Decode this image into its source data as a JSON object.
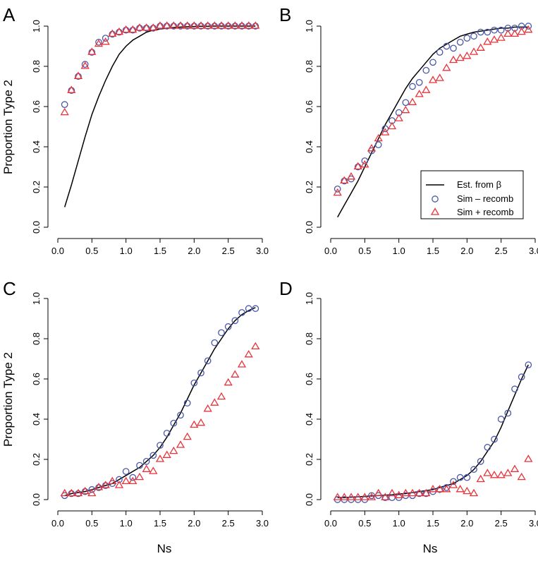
{
  "xlabel": "Ns",
  "ylabel": "Proportion Type 2",
  "colors": {
    "model": "#000000",
    "sim_no_recomb": "#4a57a8",
    "sim_recomb": "#e8333a"
  },
  "legend": {
    "placement": "bottom-right of panel B",
    "entries": [
      {
        "label": "Est. from β",
        "marker": "line",
        "color": "#000000"
      },
      {
        "label": "Sim – recomb",
        "marker": "circle",
        "color": "#4a57a8"
      },
      {
        "label": "Sim + recomb",
        "marker": "triangle",
        "color": "#e8333a"
      }
    ]
  },
  "chart_data": [
    {
      "panel": "A",
      "type": "scatter",
      "xlim": [
        0,
        3.0
      ],
      "ylim": [
        0,
        1.0
      ],
      "xticks": [
        0.0,
        0.5,
        1.0,
        1.5,
        2.0,
        2.5,
        3.0
      ],
      "yticks": [
        0.0,
        0.2,
        0.4,
        0.6,
        0.8,
        1.0
      ],
      "x": [
        0.1,
        0.2,
        0.3,
        0.4,
        0.5,
        0.6,
        0.7,
        0.8,
        0.9,
        1.0,
        1.1,
        1.2,
        1.3,
        1.4,
        1.5,
        1.6,
        1.7,
        1.8,
        1.9,
        2.0,
        2.1,
        2.2,
        2.3,
        2.4,
        2.5,
        2.6,
        2.7,
        2.8,
        2.9
      ],
      "series": [
        {
          "name": "Est. from β",
          "kind": "line",
          "values": [
            0.1,
            0.21,
            0.33,
            0.45,
            0.56,
            0.65,
            0.73,
            0.8,
            0.86,
            0.9,
            0.93,
            0.95,
            0.97,
            0.98,
            0.985,
            0.99,
            0.993,
            0.995,
            0.997,
            0.998,
            0.999,
            0.999,
            1.0,
            1.0,
            1.0,
            1.0,
            1.0,
            1.0,
            1.0
          ]
        },
        {
          "name": "Sim – recomb",
          "kind": "circle",
          "values": [
            0.61,
            0.68,
            0.75,
            0.81,
            0.87,
            0.92,
            0.94,
            0.96,
            0.97,
            0.98,
            0.98,
            0.99,
            0.99,
            0.99,
            1.0,
            1.0,
            1.0,
            1.0,
            1.0,
            1.0,
            1.0,
            1.0,
            1.0,
            1.0,
            1.0,
            1.0,
            1.0,
            1.0,
            1.0
          ]
        },
        {
          "name": "Sim + recomb",
          "kind": "triangle",
          "values": [
            0.57,
            0.68,
            0.75,
            0.8,
            0.87,
            0.91,
            0.92,
            0.96,
            0.97,
            0.98,
            0.98,
            0.99,
            0.99,
            0.99,
            1.0,
            1.0,
            1.0,
            1.0,
            1.0,
            1.0,
            1.0,
            1.0,
            1.0,
            1.0,
            1.0,
            1.0,
            1.0,
            1.0,
            1.0
          ]
        }
      ]
    },
    {
      "panel": "B",
      "type": "scatter",
      "xlim": [
        0,
        3.0
      ],
      "ylim": [
        0,
        1.0
      ],
      "xticks": [
        0.0,
        0.5,
        1.0,
        1.5,
        2.0,
        2.5,
        3.0
      ],
      "yticks": [
        0.0,
        0.2,
        0.4,
        0.6,
        0.8,
        1.0
      ],
      "x": [
        0.1,
        0.2,
        0.3,
        0.4,
        0.5,
        0.6,
        0.7,
        0.8,
        0.9,
        1.0,
        1.1,
        1.2,
        1.3,
        1.4,
        1.5,
        1.6,
        1.7,
        1.8,
        1.9,
        2.0,
        2.1,
        2.2,
        2.3,
        2.4,
        2.5,
        2.6,
        2.7,
        2.8,
        2.9
      ],
      "series": [
        {
          "name": "Est. from β",
          "kind": "line",
          "values": [
            0.05,
            0.11,
            0.17,
            0.23,
            0.3,
            0.37,
            0.44,
            0.51,
            0.57,
            0.63,
            0.69,
            0.74,
            0.78,
            0.82,
            0.86,
            0.89,
            0.91,
            0.93,
            0.95,
            0.96,
            0.97,
            0.975,
            0.98,
            0.985,
            0.99,
            0.99,
            0.995,
            0.995,
            0.995
          ]
        },
        {
          "name": "Sim – recomb",
          "kind": "circle",
          "values": [
            0.19,
            0.23,
            0.24,
            0.3,
            0.33,
            0.38,
            0.41,
            0.49,
            0.53,
            0.57,
            0.62,
            0.7,
            0.72,
            0.78,
            0.82,
            0.87,
            0.9,
            0.89,
            0.92,
            0.94,
            0.95,
            0.97,
            0.97,
            0.98,
            0.98,
            0.99,
            0.99,
            1.0,
            1.0
          ]
        },
        {
          "name": "Sim + recomb",
          "kind": "triangle",
          "values": [
            0.17,
            0.23,
            0.25,
            0.3,
            0.31,
            0.39,
            0.44,
            0.47,
            0.5,
            0.54,
            0.58,
            0.62,
            0.66,
            0.68,
            0.73,
            0.74,
            0.79,
            0.83,
            0.84,
            0.85,
            0.87,
            0.89,
            0.92,
            0.93,
            0.94,
            0.96,
            0.96,
            0.97,
            0.98
          ]
        }
      ]
    },
    {
      "panel": "C",
      "type": "scatter",
      "xlim": [
        0,
        3.0
      ],
      "ylim": [
        0,
        1.0
      ],
      "xticks": [
        0.0,
        0.5,
        1.0,
        1.5,
        2.0,
        2.5,
        3.0
      ],
      "yticks": [
        0.0,
        0.2,
        0.4,
        0.6,
        0.8,
        1.0
      ],
      "x": [
        0.1,
        0.2,
        0.3,
        0.4,
        0.5,
        0.6,
        0.7,
        0.8,
        0.9,
        1.0,
        1.1,
        1.2,
        1.3,
        1.4,
        1.5,
        1.6,
        1.7,
        1.8,
        1.9,
        2.0,
        2.1,
        2.2,
        2.3,
        2.4,
        2.5,
        2.6,
        2.7,
        2.8,
        2.9
      ],
      "series": [
        {
          "name": "Est. from β",
          "kind": "line",
          "values": [
            0.02,
            0.03,
            0.035,
            0.04,
            0.05,
            0.06,
            0.07,
            0.08,
            0.1,
            0.12,
            0.14,
            0.16,
            0.19,
            0.22,
            0.26,
            0.31,
            0.37,
            0.43,
            0.5,
            0.57,
            0.63,
            0.69,
            0.75,
            0.8,
            0.85,
            0.89,
            0.92,
            0.94,
            0.955
          ]
        },
        {
          "name": "Sim – recomb",
          "kind": "circle",
          "values": [
            0.02,
            0.03,
            0.03,
            0.04,
            0.05,
            0.06,
            0.07,
            0.08,
            0.1,
            0.14,
            0.11,
            0.17,
            0.19,
            0.22,
            0.27,
            0.33,
            0.38,
            0.42,
            0.48,
            0.58,
            0.63,
            0.69,
            0.78,
            0.83,
            0.86,
            0.89,
            0.93,
            0.95,
            0.95
          ]
        },
        {
          "name": "Sim + recomb",
          "kind": "triangle",
          "values": [
            0.03,
            0.03,
            0.03,
            0.04,
            0.03,
            0.06,
            0.07,
            0.09,
            0.07,
            0.09,
            0.09,
            0.11,
            0.15,
            0.14,
            0.2,
            0.22,
            0.24,
            0.27,
            0.31,
            0.37,
            0.38,
            0.45,
            0.48,
            0.51,
            0.58,
            0.62,
            0.67,
            0.72,
            0.76
          ]
        }
      ]
    },
    {
      "panel": "D",
      "type": "scatter",
      "xlim": [
        0,
        3.0
      ],
      "ylim": [
        0,
        1.0
      ],
      "xticks": [
        0.0,
        0.5,
        1.0,
        1.5,
        2.0,
        2.5,
        3.0
      ],
      "yticks": [
        0.0,
        0.2,
        0.4,
        0.6,
        0.8,
        1.0
      ],
      "x": [
        0.1,
        0.2,
        0.3,
        0.4,
        0.5,
        0.6,
        0.7,
        0.8,
        0.9,
        1.0,
        1.1,
        1.2,
        1.3,
        1.4,
        1.5,
        1.6,
        1.7,
        1.8,
        1.9,
        2.0,
        2.1,
        2.2,
        2.3,
        2.4,
        2.5,
        2.6,
        2.7,
        2.8,
        2.9
      ],
      "series": [
        {
          "name": "Est. from β",
          "kind": "line",
          "values": [
            0.01,
            0.01,
            0.012,
            0.014,
            0.016,
            0.018,
            0.02,
            0.022,
            0.025,
            0.028,
            0.03,
            0.035,
            0.04,
            0.045,
            0.05,
            0.06,
            0.07,
            0.08,
            0.1,
            0.12,
            0.15,
            0.19,
            0.24,
            0.29,
            0.36,
            0.44,
            0.52,
            0.6,
            0.67
          ]
        },
        {
          "name": "Sim – recomb",
          "kind": "circle",
          "values": [
            0.0,
            0.0,
            0.0,
            0.0,
            0.0,
            0.02,
            0.02,
            0.01,
            0.01,
            0.01,
            0.02,
            0.02,
            0.03,
            0.03,
            0.04,
            0.05,
            0.06,
            0.09,
            0.11,
            0.11,
            0.15,
            0.19,
            0.26,
            0.3,
            0.4,
            0.43,
            0.55,
            0.61,
            0.67
          ]
        },
        {
          "name": "Sim + recomb",
          "kind": "triangle",
          "values": [
            0.01,
            0.01,
            0.01,
            0.01,
            0.01,
            0.01,
            0.03,
            0.01,
            0.03,
            0.02,
            0.03,
            0.03,
            0.03,
            0.03,
            0.05,
            0.05,
            0.05,
            0.07,
            0.05,
            0.04,
            0.03,
            0.1,
            0.13,
            0.12,
            0.12,
            0.13,
            0.15,
            0.11,
            0.2
          ]
        }
      ]
    }
  ]
}
